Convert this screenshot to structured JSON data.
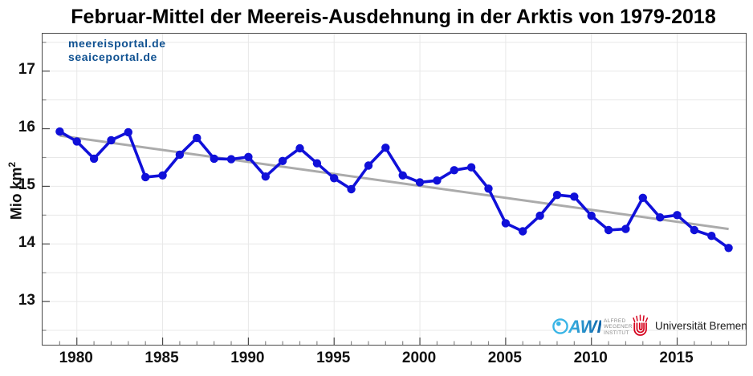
{
  "figure": {
    "title": "Februar-Mittel der Meereis-Ausdehnung in der Arktis von 1979-2018",
    "watermark_line1": "meereisportal.de",
    "watermark_line2": "seaiceportal.de",
    "ylabel_text": "Mio km",
    "ylabel_sup": "2"
  },
  "logos": {
    "awi_acronym": "AWI",
    "awi_institute_line1": "ALFRED",
    "awi_institute_line2": "WEGENER",
    "awi_institute_line3": "INSTITUT",
    "uni_bremen_label": "Universität Bremen"
  },
  "colors": {
    "series_blue": "#1010d9",
    "trend_gray": "#ababab",
    "grid": "#e8e8e8",
    "axis": "#4a4a4a",
    "minor_tick": "#8a8a8a",
    "watermark_blue": "#0f5191",
    "awi_cyan": "#3ab5e6",
    "awi_blue": "#0e63a8",
    "bremen_red": "#d6001c"
  },
  "chart_data": {
    "type": "line",
    "title": "Februar-Mittel der Meereis-Ausdehnung in der Arktis von 1979-2018",
    "xlabel": "",
    "ylabel": "Mio km²",
    "xlim": [
      1978,
      2019
    ],
    "ylim": [
      12.25,
      17.65
    ],
    "xticks_major": [
      1980,
      1985,
      1990,
      1995,
      2000,
      2005,
      2010,
      2015
    ],
    "yticks_major": [
      17,
      16,
      15,
      14,
      13
    ],
    "ygrid_step": 0.5,
    "grid": true,
    "x_years": [
      1979,
      1980,
      1981,
      1982,
      1983,
      1984,
      1985,
      1986,
      1987,
      1988,
      1989,
      1990,
      1991,
      1992,
      1993,
      1994,
      1995,
      1996,
      1997,
      1998,
      1999,
      2000,
      2001,
      2002,
      2003,
      2004,
      2005,
      2006,
      2007,
      2008,
      2009,
      2010,
      2011,
      2012,
      2013,
      2014,
      2015,
      2016,
      2017,
      2018
    ],
    "series": [
      {
        "name": "Februar-Mittel der Meereis-Ausdehnung",
        "color": "#1010d9",
        "marker": "circle",
        "values": [
          15.95,
          15.78,
          15.48,
          15.8,
          15.94,
          15.16,
          15.19,
          15.55,
          15.84,
          15.48,
          15.47,
          15.51,
          15.17,
          15.44,
          15.66,
          15.4,
          15.14,
          14.95,
          15.36,
          15.67,
          15.19,
          15.07,
          15.1,
          15.28,
          15.33,
          14.96,
          14.36,
          14.22,
          14.49,
          14.85,
          14.82,
          14.49,
          14.24,
          14.26,
          14.8,
          14.46,
          14.5,
          14.24,
          14.14,
          13.93
        ]
      },
      {
        "name": "Linearer Trend",
        "color": "#ababab",
        "x": [
          1979,
          2018
        ],
        "values": [
          15.88,
          14.26
        ]
      }
    ]
  }
}
